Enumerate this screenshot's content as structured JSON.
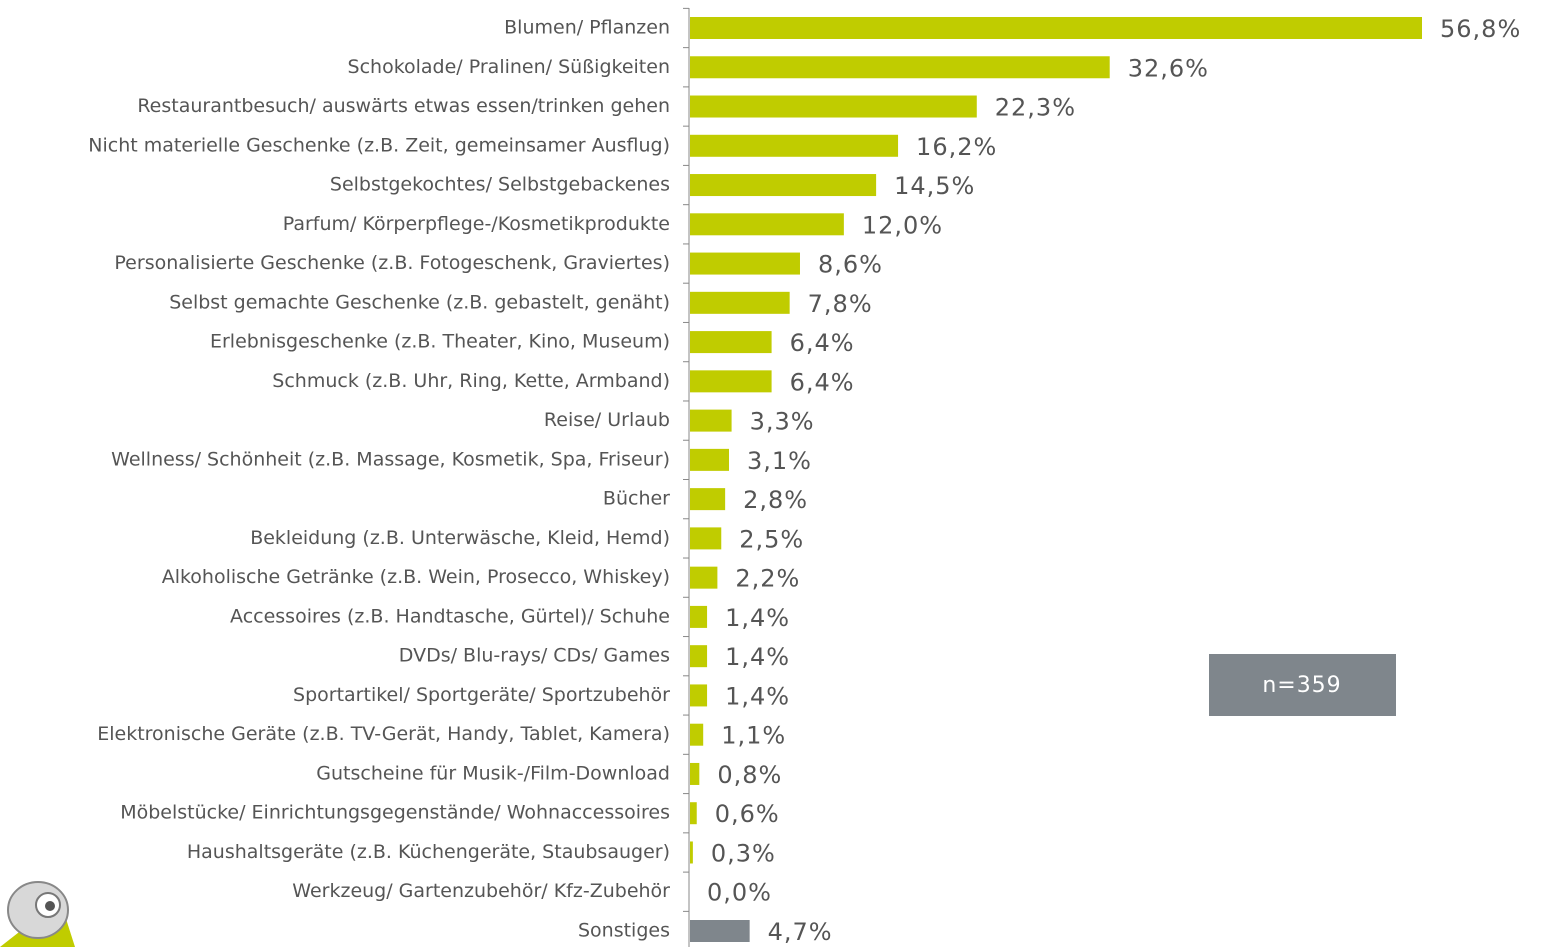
{
  "chart_data": {
    "type": "barh",
    "categories": [
      "Blumen/ Pflanzen",
      "Schokolade/ Pralinen/ Süßigkeiten",
      "Restaurantbesuch/ auswärts etwas essen/trinken gehen",
      "Nicht materielle Geschenke (z.B. Zeit, gemeinsamer Ausflug)",
      "Selbstgekochtes/ Selbstgebackenes",
      "Parfum/ Körperpflege-/Kosmetikprodukte",
      "Personalisierte Geschenke (z.B. Fotogeschenk, Graviertes)",
      "Selbst gemachte Geschenke (z.B. gebastelt, genäht)",
      "Erlebnisgeschenke (z.B. Theater, Kino, Museum)",
      "Schmuck (z.B. Uhr, Ring, Kette, Armband)",
      "Reise/ Urlaub",
      "Wellness/ Schönheit (z.B. Massage, Kosmetik, Spa, Friseur)",
      "Bücher",
      "Bekleidung (z.B. Unterwäsche, Kleid, Hemd)",
      "Alkoholische Getränke (z.B. Wein, Prosecco, Whiskey)",
      "Accessoires (z.B. Handtasche, Gürtel)/ Schuhe",
      "DVDs/ Blu-rays/ CDs/ Games",
      "Sportartikel/ Sportgeräte/ Sportzubehör",
      "Elektronische Geräte (z.B. TV-Gerät, Handy, Tablet, Kamera)",
      "Gutscheine für Musik-/Film-Download",
      "Möbelstücke/ Einrichtungsgegenstände/ Wohnaccessoires",
      "Haushaltsgeräte (z.B. Küchengeräte, Staubsauger)",
      "Werkzeug/ Gartenzubehör/ Kfz-Zubehör",
      "Sonstiges"
    ],
    "values": [
      56.8,
      32.6,
      22.3,
      16.2,
      14.5,
      12.0,
      8.6,
      7.8,
      6.4,
      6.4,
      3.3,
      3.1,
      2.8,
      2.5,
      2.2,
      1.4,
      1.4,
      1.4,
      1.1,
      0.8,
      0.6,
      0.3,
      0.0,
      4.7
    ],
    "value_labels": [
      "56,8%",
      "32,6%",
      "22,3%",
      "16,2%",
      "14,5%",
      "12,0%",
      "8,6%",
      "7,8%",
      "6,4%",
      "6,4%",
      "3,3%",
      "3,1%",
      "2,8%",
      "2,5%",
      "2,2%",
      "1,4%",
      "1,4%",
      "1,4%",
      "1,1%",
      "0,8%",
      "0,6%",
      "0,3%",
      "0,0%",
      "4,7%"
    ],
    "colors": [
      "#c0cc00",
      "#c0cc00",
      "#c0cc00",
      "#c0cc00",
      "#c0cc00",
      "#c0cc00",
      "#c0cc00",
      "#c0cc00",
      "#c0cc00",
      "#c0cc00",
      "#c0cc00",
      "#c0cc00",
      "#c0cc00",
      "#c0cc00",
      "#c0cc00",
      "#c0cc00",
      "#c0cc00",
      "#c0cc00",
      "#c0cc00",
      "#c0cc00",
      "#c0cc00",
      "#c0cc00",
      "#c0cc00",
      "#7f868c"
    ],
    "annotation": "n=359"
  }
}
